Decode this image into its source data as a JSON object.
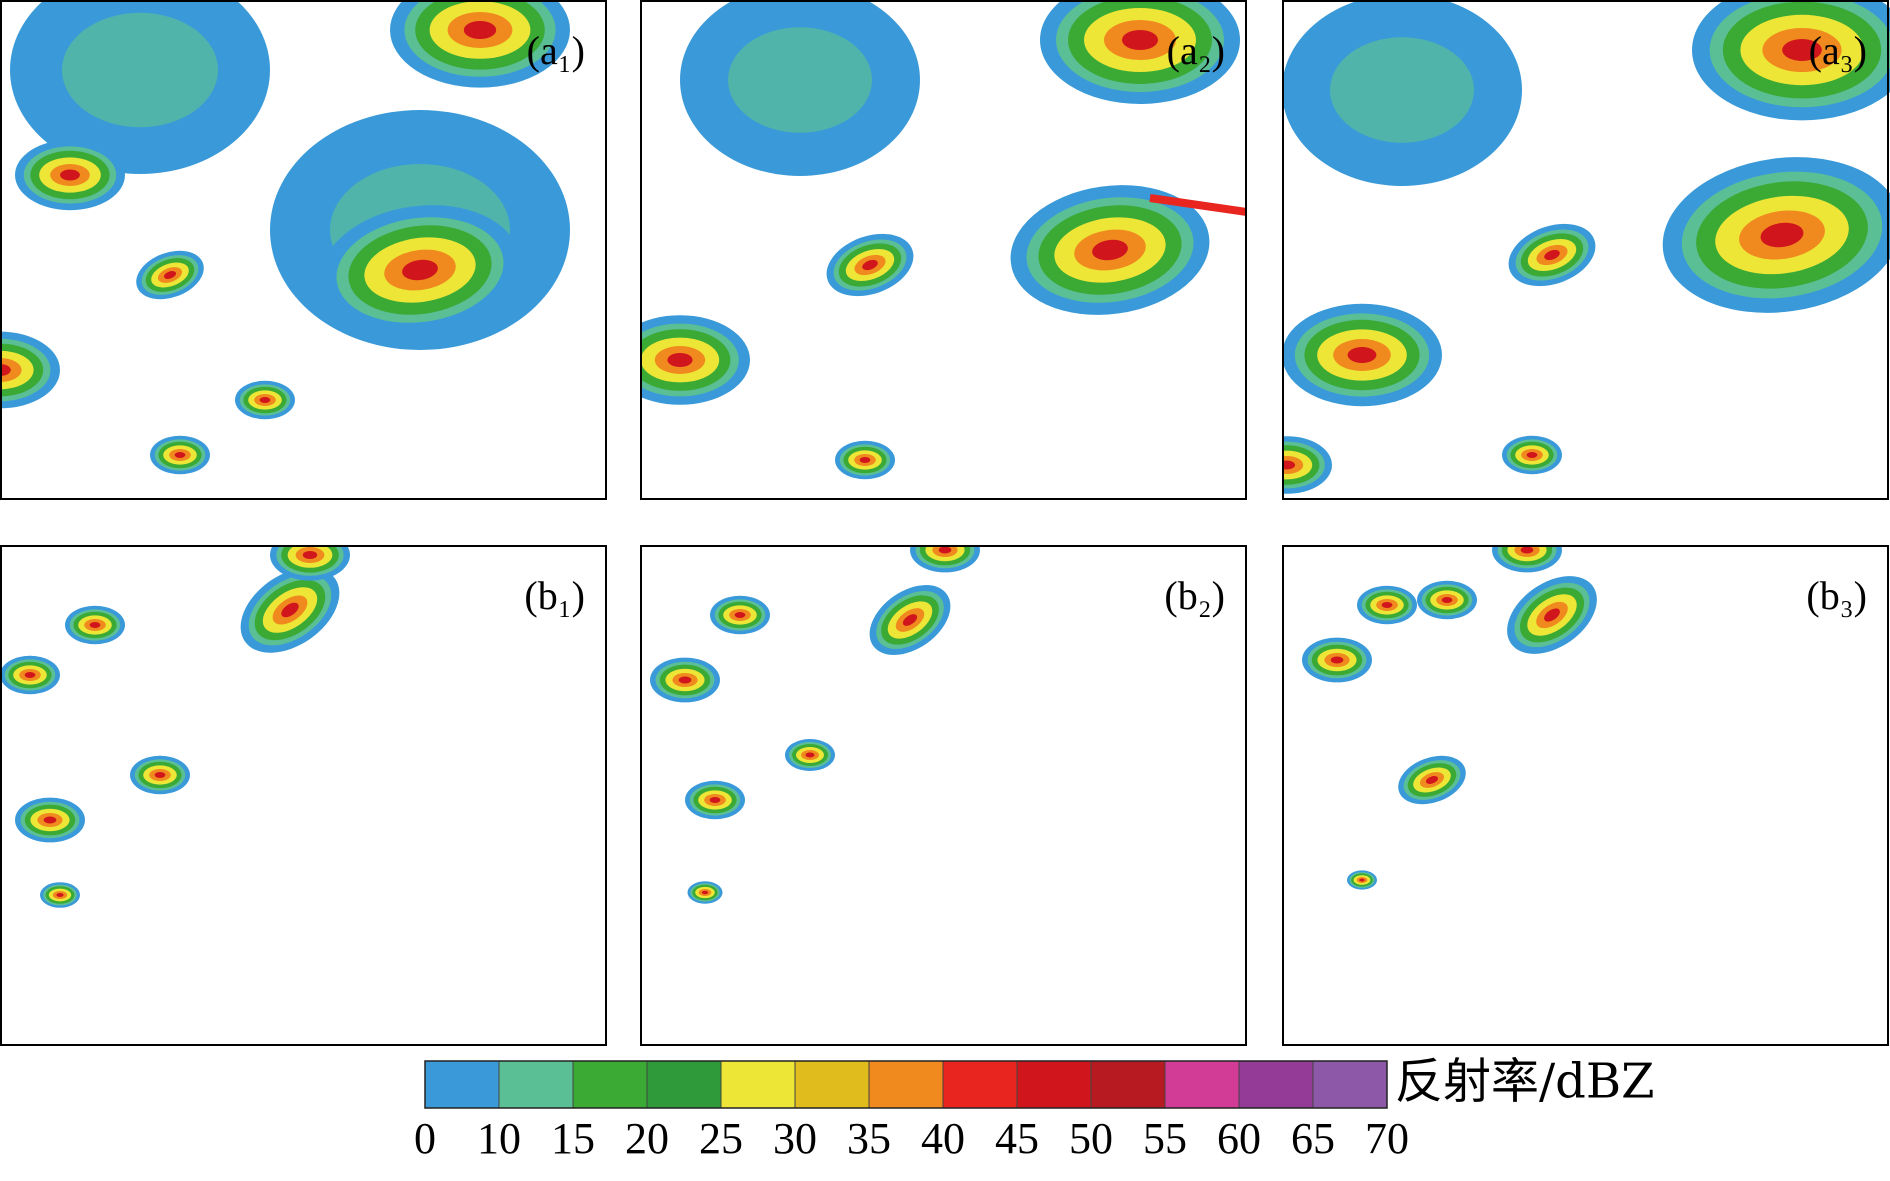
{
  "chart_data": {
    "type": "colorbar",
    "panels": [
      {
        "label": "(a₁)"
      },
      {
        "label": "(a₂)"
      },
      {
        "label": "(a₃)"
      },
      {
        "label": "(b₁)"
      },
      {
        "label": "(b₂)"
      },
      {
        "label": "(b₃)"
      }
    ],
    "colorbar_label": "反射率/dBZ",
    "levels": [
      0,
      10,
      15,
      20,
      25,
      30,
      35,
      40,
      45,
      50,
      55,
      60,
      65,
      70
    ],
    "colors": [
      "#3a9ad9",
      "#5bbf95",
      "#3aaa35",
      "#2e9a3a",
      "#ede637",
      "#e0bc1c",
      "#f08a1e",
      "#e8261f",
      "#d0161c",
      "#b81a22",
      "#d33c96",
      "#933b97",
      "#8e58a8"
    ]
  }
}
